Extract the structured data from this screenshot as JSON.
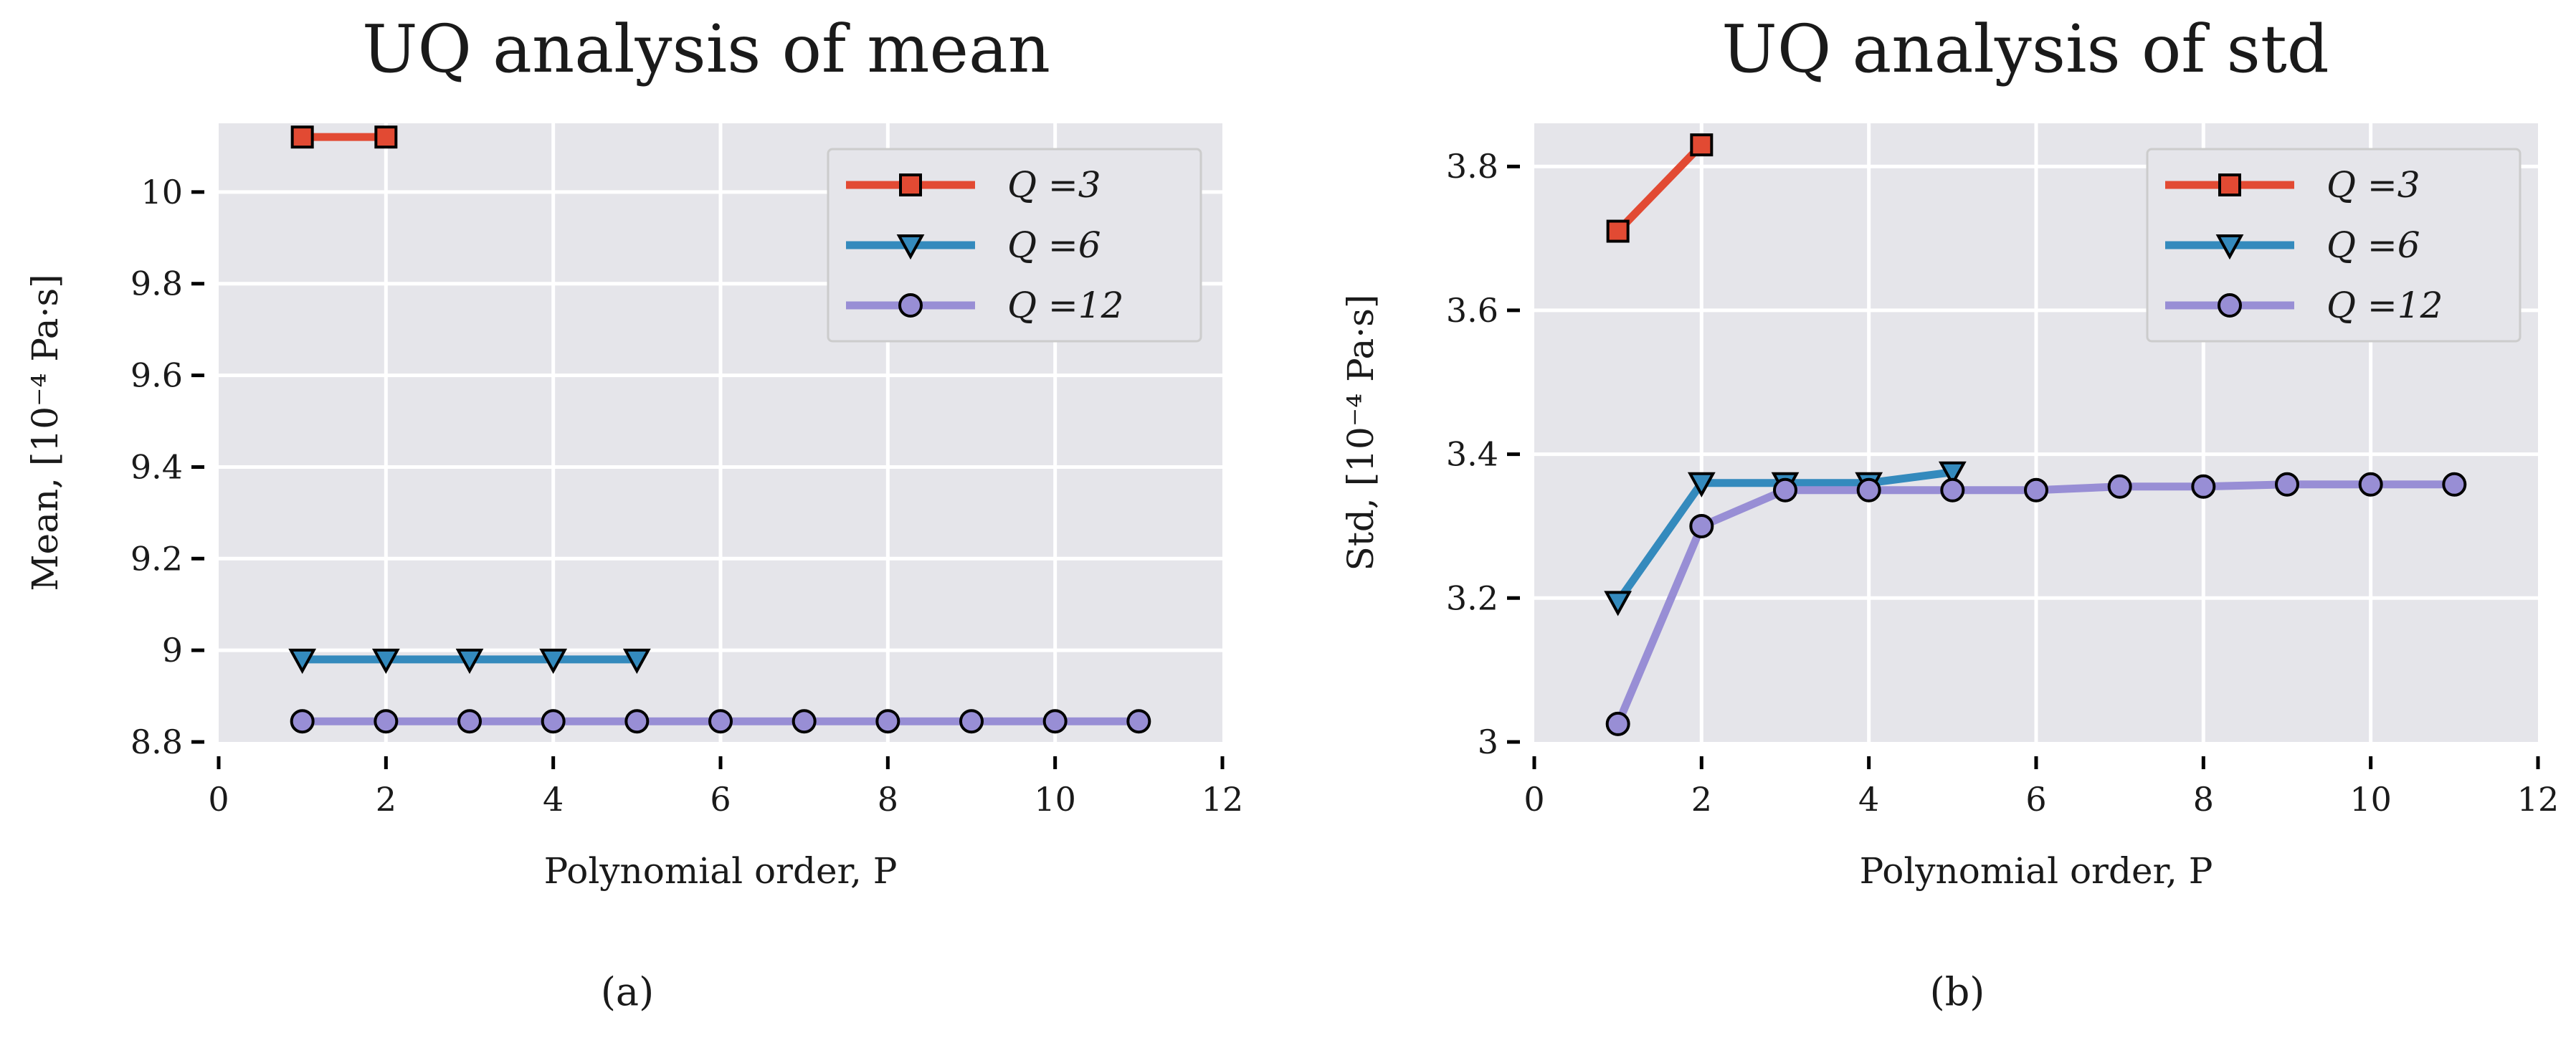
{
  "colors": {
    "background": "#e5e5ea",
    "grid": "#ffffff",
    "q3": "#e24a33",
    "q6": "#348abd",
    "q12": "#988ed5",
    "marker_edge": "#000000"
  },
  "chart_data": [
    {
      "type": "line",
      "panel": "(a)",
      "title": "UQ analysis of mean",
      "xlabel": "Polynomial order, P",
      "ylabel": "Mean, [10⁻⁴ Pa·s]",
      "xlim": [
        0,
        12
      ],
      "ylim": [
        8.8,
        10.15
      ],
      "xticks": [
        0,
        2,
        4,
        6,
        8,
        10,
        12
      ],
      "yticks": [
        8.8,
        9.0,
        9.2,
        9.4,
        9.6,
        9.8,
        10.0
      ],
      "grid": true,
      "legend_position": "top-right",
      "series": [
        {
          "name": "Q =3",
          "marker": "square",
          "color": "#e24a33",
          "x": [
            1,
            2
          ],
          "y": [
            10.12,
            10.12
          ]
        },
        {
          "name": "Q =6",
          "marker": "triangle-down",
          "color": "#348abd",
          "x": [
            1,
            2,
            3,
            4,
            5
          ],
          "y": [
            8.98,
            8.98,
            8.98,
            8.98,
            8.98
          ]
        },
        {
          "name": "Q =12",
          "marker": "circle",
          "color": "#988ed5",
          "x": [
            1,
            2,
            3,
            4,
            5,
            6,
            7,
            8,
            9,
            10,
            11
          ],
          "y": [
            8.845,
            8.845,
            8.845,
            8.845,
            8.845,
            8.845,
            8.845,
            8.845,
            8.845,
            8.845,
            8.845
          ]
        }
      ]
    },
    {
      "type": "line",
      "panel": "(b)",
      "title": "UQ analysis of std",
      "xlabel": "Polynomial order, P",
      "ylabel": "Std, [10⁻⁴ Pa·s]",
      "xlim": [
        0,
        12
      ],
      "ylim": [
        3.0,
        3.86
      ],
      "xticks": [
        0,
        2,
        4,
        6,
        8,
        10,
        12
      ],
      "yticks": [
        3.0,
        3.2,
        3.4,
        3.6,
        3.8
      ],
      "grid": true,
      "legend_position": "top-right",
      "series": [
        {
          "name": "Q =3",
          "marker": "square",
          "color": "#e24a33",
          "x": [
            1,
            2
          ],
          "y": [
            3.71,
            3.83
          ]
        },
        {
          "name": "Q =6",
          "marker": "triangle-down",
          "color": "#348abd",
          "x": [
            1,
            2,
            3,
            4,
            5
          ],
          "y": [
            3.195,
            3.36,
            3.36,
            3.36,
            3.375
          ]
        },
        {
          "name": "Q =12",
          "marker": "circle",
          "color": "#988ed5",
          "x": [
            1,
            2,
            3,
            4,
            5,
            6,
            7,
            8,
            9,
            10,
            11
          ],
          "y": [
            3.025,
            3.3,
            3.35,
            3.35,
            3.35,
            3.35,
            3.355,
            3.355,
            3.358,
            3.358,
            3.358
          ]
        }
      ]
    }
  ]
}
